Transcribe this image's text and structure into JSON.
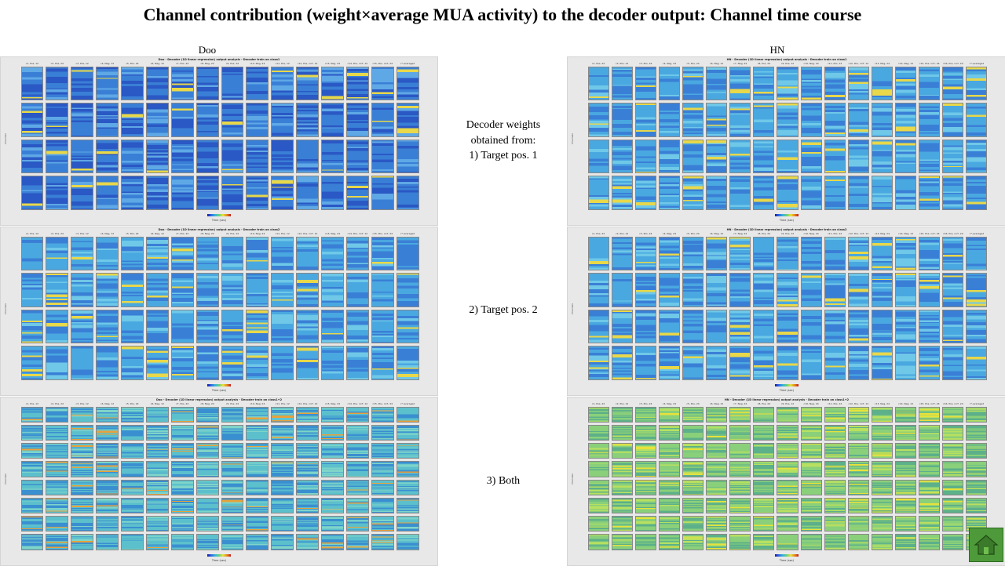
{
  "slide": {
    "title": "Channel contribution (weight×average MUA activity) to the decoder output: Channel time course"
  },
  "columns": {
    "left_label": "Doo",
    "right_label": "HN"
  },
  "notes": {
    "row1": [
      "Decoder weights",
      "obtained from:",
      "1) Target pos. 1"
    ],
    "row2": [
      "2) Target  pos. 2"
    ],
    "row3": [
      "3) Both"
    ]
  },
  "panels": [
    {
      "id": "doo-1",
      "title": "Doo - Decoder (1D linear regression) output analysis - Decoder train on class1",
      "rows": 4,
      "palette": "blue",
      "xlabel": "Time (sec)",
      "ylabel": "Channels",
      "headers": [
        "c1, Pos, 12",
        "c2, Pos, 24",
        "c3, Pos, 12",
        "c4, Neg, 12",
        "c5, Pos, 24",
        "c6, Neg, 12",
        "c7, Pos, 24",
        "c8, Neg, 24",
        "c9, Pos, 24",
        "c10, Neg, 24",
        "c11, Pos, 12",
        "c12, Pos, noT, 12",
        "c13, Neg, 24",
        "c14, Pos, noT, 12",
        "c15, Pos, noT, 24",
        "c*-averaged"
      ]
    },
    {
      "id": "hn-1",
      "title": "HN - Decoder (1D linear regression) output analysis - Decoder train on class1",
      "rows": 4,
      "palette": "cyan",
      "xlabel": "Time (sec)",
      "ylabel": "Channels",
      "headers": [
        "c1, Pos, 24",
        "c2, Pos, 12",
        "c3, Pos, 24",
        "c4, Neg, 24",
        "c5, Pos, 24",
        "c6, Neg, 12",
        "c7, Neg, 24",
        "c8, Pos, 24",
        "c9, Pos, 12",
        "c10, Neg, 24",
        "c11, Pos, 12",
        "c12, Pos, noT, 12",
        "c13, Neg, 24",
        "c14, Neg, 12",
        "c15, Pos, noT, 24",
        "c16, Pos, noT, 24",
        "c*-averaged"
      ]
    },
    {
      "id": "doo-2",
      "title": "Doo - Decoder (1D linear regression) output analysis - Decoder train on class2",
      "rows": 4,
      "palette": "cyan",
      "xlabel": "Time (sec)",
      "ylabel": "Channels",
      "headers": [
        "c1, Pos, 12",
        "c2, Pos, 24",
        "c3, Pos, 12",
        "c4, Neg, 12",
        "c5, Pos, 24",
        "c6, Neg, 12",
        "c7, Pos, 24",
        "c8, Neg, 24",
        "c9, Pos, 24",
        "c10, Neg, 24",
        "c11, Pos, 12",
        "c12, Pos, noT, 12",
        "c13, Neg, 24",
        "c14, Pos, noT, 12",
        "c15, Pos, noT, 24",
        "c*-averaged"
      ]
    },
    {
      "id": "hn-2",
      "title": "HN - Decoder (1D linear regression) output analysis - Decoder train on class2",
      "rows": 4,
      "palette": "cyan",
      "xlabel": "Time (sec)",
      "ylabel": "Channels",
      "headers": [
        "c1, Pos, 24",
        "c2, Pos, 12",
        "c3, Pos, 24",
        "c4, Neg, 24",
        "c5, Pos, 24",
        "c6, Neg, 12",
        "c7, Neg, 24",
        "c8, Pos, 24",
        "c9, Pos, 12",
        "c10, Neg, 24",
        "c11, Pos, 12",
        "c12, Pos, noT, 12",
        "c13, Neg, 24",
        "c14, Neg, 12",
        "c15, Pos, noT, 24",
        "c16, Pos, noT, 24",
        "c*-averaged"
      ]
    },
    {
      "id": "doo-3",
      "title": "Doo - Decoder (1D linear regression) output analysis - Decoder train on class1+2",
      "rows": 8,
      "palette": "teal",
      "xlabel": "Time (sec)",
      "ylabel": "Channels",
      "headers": [
        "c1, Pos, 12",
        "c2, Pos, 24",
        "c3, Pos, 12",
        "c4, Neg, 12",
        "c5, Pos, 24",
        "c6, Neg, 12",
        "c7, Pos, 24",
        "c8, Neg, 24",
        "c9, Pos, 24",
        "c10, Neg, 24",
        "c11, Pos, 12",
        "c12, Pos, noT, 12",
        "c13, Neg, 24",
        "c14, Pos, noT, 12",
        "c15, Pos, noT, 24",
        "c*-averaged"
      ]
    },
    {
      "id": "hn-3",
      "title": "HN - Decoder (1D linear regression) output analysis - Decoder train on class1+2",
      "rows": 8,
      "palette": "green",
      "xlabel": "Time (sec)",
      "ylabel": "Channels",
      "headers": [
        "c1, Pos, 24",
        "c2, Pos, 12",
        "c3, Pos, 24",
        "c4, Neg, 24",
        "c5, Pos, 24",
        "c6, Neg, 12",
        "c7, Neg, 24",
        "c8, Pos, 24",
        "c9, Pos, 12",
        "c10, Neg, 24",
        "c11, Pos, 12",
        "c12, Pos, noT, 12",
        "c13, Neg, 24",
        "c14, Neg, 12",
        "c15, Pos, noT, 24",
        "c16, Pos, noT, 24",
        "c*-averaged"
      ]
    }
  ],
  "colors": {
    "blue": {
      "base": "#3a7fd6",
      "dark": "#2a58c4",
      "light": "#5fa8e6",
      "hot": "#e8d84a"
    },
    "cyan": {
      "base": "#4aa8e0",
      "dark": "#3a7fd6",
      "light": "#6fc8e8",
      "hot": "#e8d84a"
    },
    "teal": {
      "base": "#5cc0cc",
      "dark": "#3a8fd0",
      "light": "#7fd4c8",
      "hot": "#e8a23a"
    },
    "green": {
      "base": "#8ad07a",
      "dark": "#5cb08a",
      "light": "#b8e060",
      "hot": "#e8e23a"
    }
  },
  "home_button": {
    "icon": "home-icon"
  }
}
